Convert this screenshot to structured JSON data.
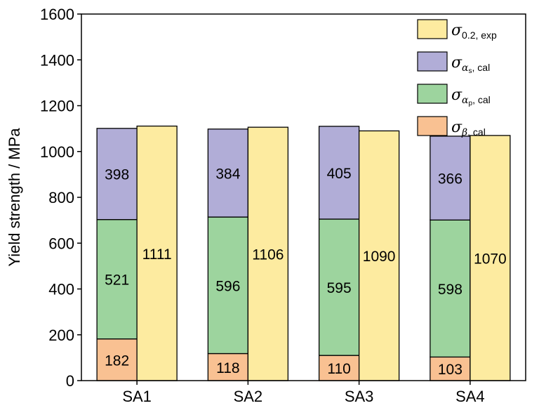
{
  "chart_data": {
    "type": "bar",
    "stacked": true,
    "categories": [
      "SA1",
      "SA2",
      "SA3",
      "SA4"
    ],
    "ylabel": "Yield strength / MPa",
    "xlabel": "",
    "ylim": [
      0,
      1600
    ],
    "yticks": [
      0,
      200,
      400,
      600,
      800,
      1000,
      1200,
      1400,
      1600
    ],
    "grid": false,
    "legend_position": "top-right",
    "stacked_series": [
      {
        "name": "σβ, cal",
        "legend_symbol": "σ",
        "legend_sub": "β",
        "legend_sub_rest": ", cal",
        "legend_subsub": "",
        "color": "#F9C192",
        "values": [
          182,
          118,
          110,
          103
        ]
      },
      {
        "name": "σαp, cal",
        "legend_symbol": "σ",
        "legend_sub": "α",
        "legend_sub_rest": ", cal",
        "legend_subsub": "p",
        "color": "#9DD49E",
        "values": [
          521,
          596,
          595,
          598
        ]
      },
      {
        "name": "σαs, cal",
        "legend_symbol": "σ",
        "legend_sub": "α",
        "legend_sub_rest": ", cal",
        "legend_subsub": "s",
        "color": "#B1ADD7",
        "values": [
          398,
          384,
          405,
          366
        ]
      }
    ],
    "exp_series": {
      "name": "σ0.2, exp",
      "legend_symbol": "σ",
      "legend_sub": "",
      "legend_sub_rest": "0.2, exp",
      "legend_subsub": "",
      "color": "#FDEBA0",
      "values": [
        1111,
        1106,
        1090,
        1070
      ]
    }
  }
}
